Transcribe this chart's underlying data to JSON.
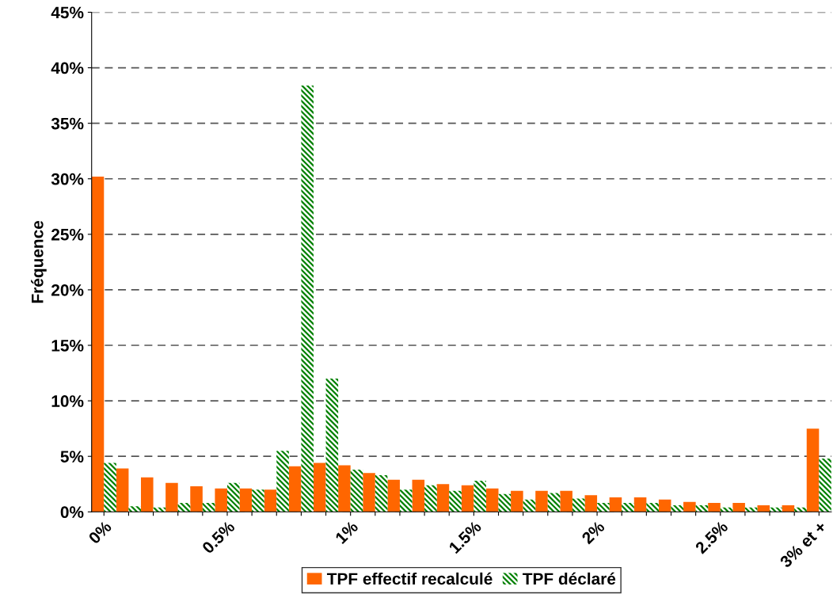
{
  "chart_data": {
    "type": "bar",
    "ylabel": "Fréquence",
    "categories": [
      "0%",
      null,
      null,
      null,
      null,
      "0.5%",
      null,
      null,
      null,
      null,
      "1%",
      null,
      null,
      null,
      null,
      "1.5%",
      null,
      null,
      null,
      null,
      "2%",
      null,
      null,
      null,
      null,
      "2.5%",
      null,
      null,
      null,
      "3% et +"
    ],
    "series": [
      {
        "name": "TPF effectif recalculé",
        "color": "#ff6600",
        "values": [
          30.2,
          3.9,
          3.1,
          2.6,
          2.3,
          2.1,
          2.1,
          2.0,
          4.1,
          4.4,
          4.2,
          3.5,
          2.9,
          2.9,
          2.5,
          2.4,
          2.1,
          1.9,
          1.9,
          1.9,
          1.5,
          1.3,
          1.3,
          1.1,
          0.9,
          0.8,
          0.8,
          0.6,
          0.6,
          7.5
        ]
      },
      {
        "name": "TPF déclaré",
        "color": "#008000",
        "values": [
          4.4,
          0.5,
          0.4,
          0.8,
          0.8,
          2.6,
          2.0,
          5.5,
          38.4,
          12.0,
          3.8,
          3.3,
          2.0,
          2.4,
          1.9,
          2.8,
          1.6,
          1.1,
          1.7,
          1.2,
          0.8,
          0.8,
          0.8,
          0.6,
          0.6,
          0.4,
          0.4,
          0.4,
          0.4,
          4.8
        ]
      }
    ],
    "ylim": [
      0,
      45
    ],
    "yticks": [
      {
        "value": 0,
        "label": "0%"
      },
      {
        "value": 5,
        "label": "5%"
      },
      {
        "value": 10,
        "label": "10%"
      },
      {
        "value": 15,
        "label": "15%"
      },
      {
        "value": 20,
        "label": "20%"
      },
      {
        "value": 25,
        "label": "25%"
      },
      {
        "value": 30,
        "label": "30%"
      },
      {
        "value": 35,
        "label": "35%"
      },
      {
        "value": 40,
        "label": "40%"
      },
      {
        "value": 45,
        "label": "45%"
      }
    ],
    "grid": "y",
    "legend": "bottom"
  }
}
